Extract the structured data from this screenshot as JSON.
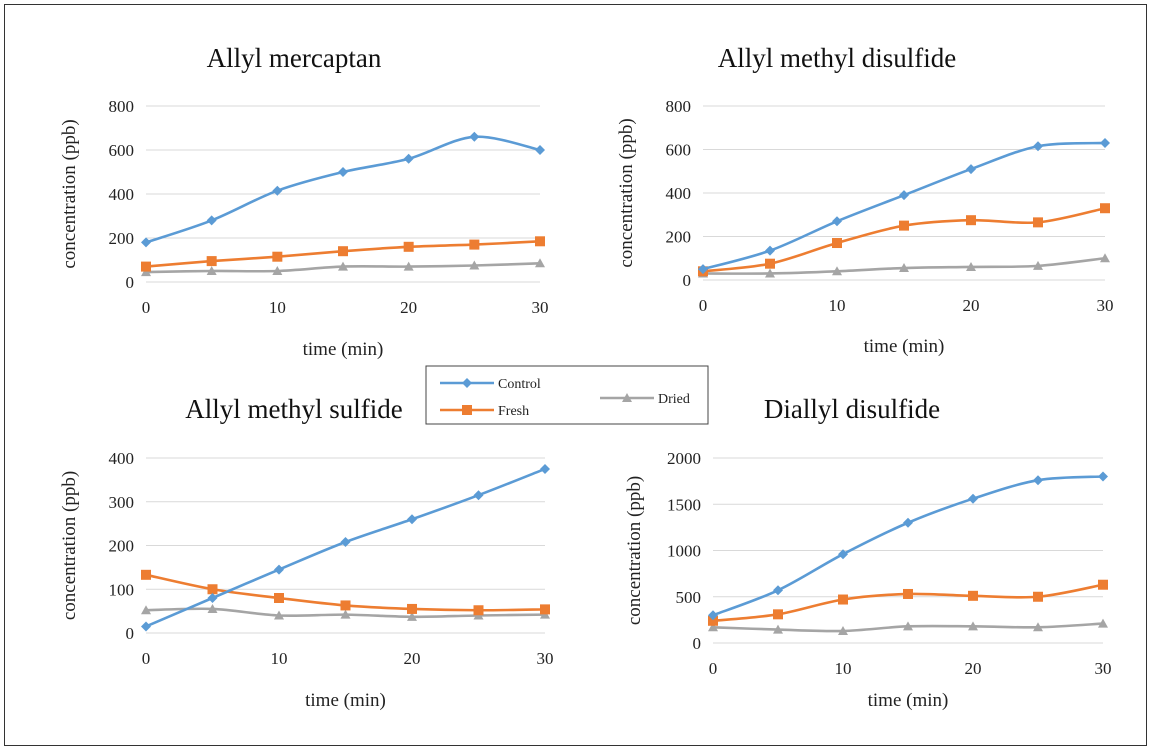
{
  "legend": {
    "entries": [
      {
        "name": "Control",
        "color": "#5b9bd5",
        "marker": "diamond"
      },
      {
        "name": "Fresh",
        "color": "#ed7d31",
        "marker": "square"
      },
      {
        "name": "Dried",
        "color": "#a5a5a5",
        "marker": "triangle"
      }
    ]
  },
  "chart_data": [
    {
      "type": "line",
      "title": "Allyl mercaptan",
      "xlabel": "time (min)",
      "ylabel": "concentration (ppb)",
      "xlim": [
        0,
        30
      ],
      "ylim": [
        0,
        800
      ],
      "xticks": [
        0,
        10,
        20,
        30
      ],
      "yticks": [
        0,
        200,
        400,
        600,
        800
      ],
      "grid": true,
      "x": [
        0,
        5,
        10,
        15,
        20,
        25,
        30
      ],
      "series": [
        {
          "name": "Control",
          "values": [
            180,
            280,
            415,
            500,
            560,
            660,
            600
          ]
        },
        {
          "name": "Fresh",
          "values": [
            70,
            95,
            115,
            140,
            160,
            170,
            185
          ]
        },
        {
          "name": "Dried",
          "values": [
            45,
            50,
            50,
            70,
            70,
            75,
            85
          ]
        }
      ]
    },
    {
      "type": "line",
      "title": "Allyl methyl disulfide",
      "xlabel": "time (min)",
      "ylabel": "concentration (ppb)",
      "xlim": [
        0,
        30
      ],
      "ylim": [
        0,
        800
      ],
      "xticks": [
        0,
        10,
        20,
        30
      ],
      "yticks": [
        0,
        200,
        400,
        600,
        800
      ],
      "grid": true,
      "x": [
        0,
        5,
        10,
        15,
        20,
        25,
        30
      ],
      "series": [
        {
          "name": "Control",
          "values": [
            50,
            135,
            270,
            390,
            510,
            615,
            630
          ]
        },
        {
          "name": "Fresh",
          "values": [
            40,
            75,
            170,
            250,
            275,
            265,
            330
          ]
        },
        {
          "name": "Dried",
          "values": [
            30,
            30,
            40,
            55,
            60,
            65,
            100
          ]
        }
      ]
    },
    {
      "type": "line",
      "title": "Allyl methyl sulfide",
      "xlabel": "time (min)",
      "ylabel": "concentration (ppb)",
      "xlim": [
        0,
        30
      ],
      "ylim": [
        0,
        400
      ],
      "xticks": [
        0,
        10,
        20,
        30
      ],
      "yticks": [
        0,
        100,
        200,
        300,
        400
      ],
      "grid": true,
      "x": [
        0,
        5,
        10,
        15,
        20,
        25,
        30
      ],
      "series": [
        {
          "name": "Control",
          "values": [
            15,
            80,
            145,
            208,
            260,
            315,
            375
          ]
        },
        {
          "name": "Fresh",
          "values": [
            133,
            100,
            80,
            63,
            55,
            52,
            54
          ]
        },
        {
          "name": "Dried",
          "values": [
            52,
            55,
            40,
            42,
            37,
            40,
            42
          ]
        }
      ]
    },
    {
      "type": "line",
      "title": "Diallyl disulfide",
      "xlabel": "time (min)",
      "ylabel": "concentration (ppb)",
      "xlim": [
        0,
        30
      ],
      "ylim": [
        0,
        2000
      ],
      "xticks": [
        0,
        10,
        20,
        30
      ],
      "yticks": [
        0,
        500,
        1000,
        1500,
        2000
      ],
      "grid": true,
      "x": [
        0,
        5,
        10,
        15,
        20,
        25,
        30
      ],
      "series": [
        {
          "name": "Control",
          "values": [
            300,
            570,
            960,
            1300,
            1560,
            1760,
            1800
          ]
        },
        {
          "name": "Fresh",
          "values": [
            240,
            310,
            470,
            530,
            510,
            500,
            630
          ]
        },
        {
          "name": "Dried",
          "values": [
            170,
            145,
            130,
            180,
            180,
            170,
            210
          ]
        }
      ]
    }
  ]
}
